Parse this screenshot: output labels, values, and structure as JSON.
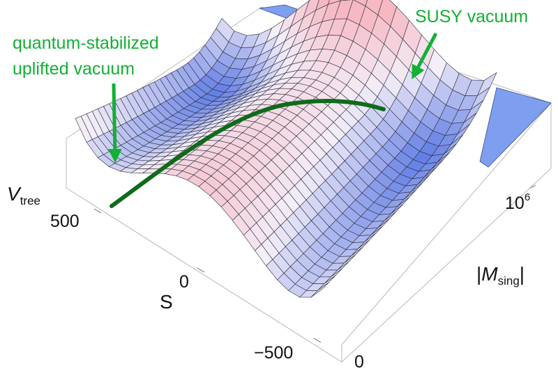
{
  "annotations": {
    "uplifted_line1": "quantum-stabilized",
    "uplifted_line2": "uplifted vacuum",
    "susy": "SUSY vacuum"
  },
  "axes": {
    "vertical": {
      "symbol": "V",
      "subscript": "tree"
    },
    "s": {
      "label": "S",
      "ticks": [
        "500",
        "0",
        "−500"
      ]
    },
    "msing": {
      "bar": "|",
      "symbol": "M",
      "subscript": "sing",
      "ticks": {
        "zero": "0",
        "base": "10",
        "exponent": "6"
      }
    }
  },
  "colors": {
    "annotation": "#12b034",
    "valley_curve": "#0f6b1a",
    "surface_high": "#f6b8c2",
    "surface_mid": "#f3eef8",
    "surface_low": "#3e62e0",
    "floor_patch": "#7e9ff0"
  }
}
